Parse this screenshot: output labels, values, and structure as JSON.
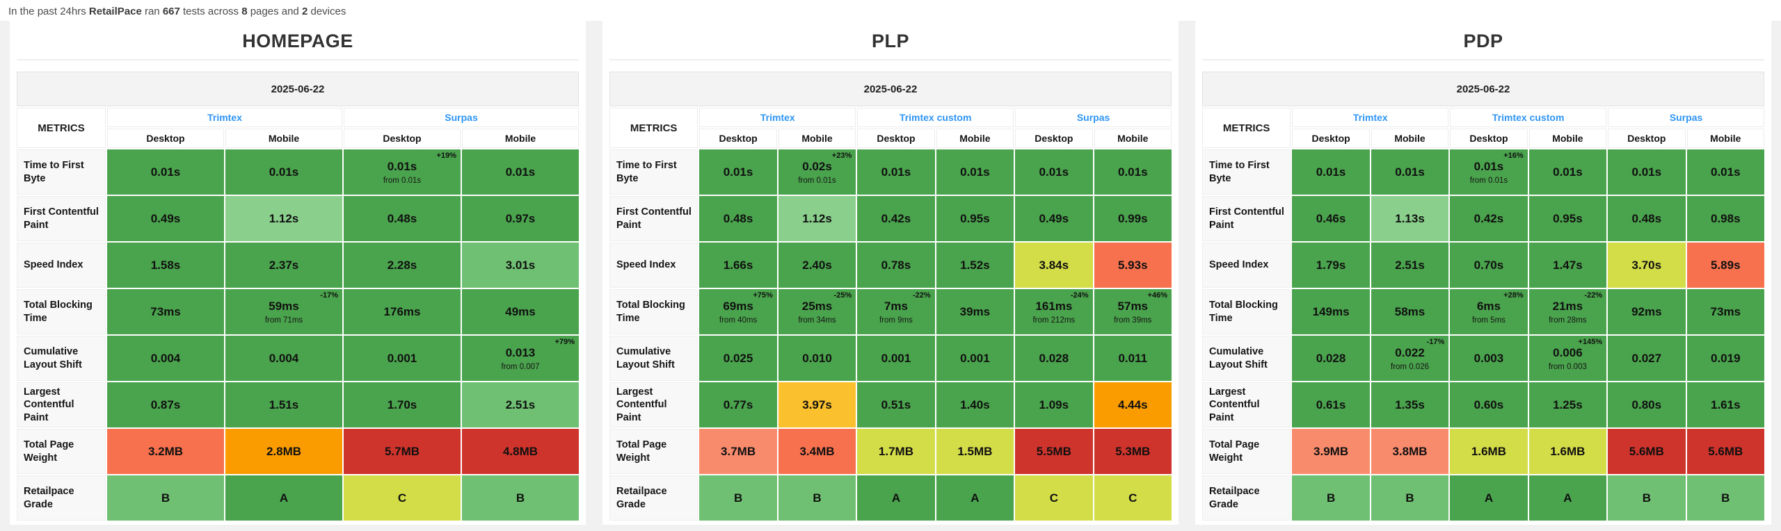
{
  "summary": {
    "segments": [
      {
        "text": "In the past 24hrs ",
        "bold": false
      },
      {
        "text": "RetailPace",
        "bold": true
      },
      {
        "text": " ran ",
        "bold": false
      },
      {
        "text": "667",
        "bold": true
      },
      {
        "text": " tests across ",
        "bold": false
      },
      {
        "text": "8",
        "bold": true
      },
      {
        "text": " pages and ",
        "bold": false
      },
      {
        "text": "2",
        "bold": true
      },
      {
        "text": " devices",
        "bold": false
      }
    ]
  },
  "colors": {
    "green": "#4aa34d",
    "green_light": "#6fc072",
    "green_lighter": "#8bcf8d",
    "yellow_green": "#d3dd48",
    "amber": "#fbc02d",
    "orange": "#fa9c00",
    "tomato": "#f7714e",
    "salmon": "#f98b6d",
    "red": "#ce342c",
    "link_blue": "#2e95f3"
  },
  "chart_data": [
    {
      "type": "table",
      "title": "HOMEPAGE",
      "date": "2025-06-22",
      "corner_label": "METRICS",
      "column_groups": [
        {
          "label": "Trimtex",
          "sub": [
            "Desktop",
            "Mobile"
          ]
        },
        {
          "label": "Surpas",
          "sub": [
            "Desktop",
            "Mobile"
          ]
        }
      ],
      "rows": [
        {
          "metric": "Time to First Byte",
          "cells": [
            {
              "v": "0.01s",
              "c": "green"
            },
            {
              "v": "0.01s",
              "c": "green"
            },
            {
              "v": "0.01s",
              "c": "green",
              "p": "+19%",
              "f": "from 0.01s"
            },
            {
              "v": "0.01s",
              "c": "green"
            }
          ]
        },
        {
          "metric": "First Contentful Paint",
          "cells": [
            {
              "v": "0.49s",
              "c": "green"
            },
            {
              "v": "1.12s",
              "c": "green_lighter"
            },
            {
              "v": "0.48s",
              "c": "green"
            },
            {
              "v": "0.97s",
              "c": "green"
            }
          ]
        },
        {
          "metric": "Speed Index",
          "cells": [
            {
              "v": "1.58s",
              "c": "green"
            },
            {
              "v": "2.37s",
              "c": "green"
            },
            {
              "v": "2.28s",
              "c": "green"
            },
            {
              "v": "3.01s",
              "c": "green_light"
            }
          ]
        },
        {
          "metric": "Total Blocking Time",
          "cells": [
            {
              "v": "73ms",
              "c": "green"
            },
            {
              "v": "59ms",
              "c": "green",
              "p": "-17%",
              "f": "from 71ms"
            },
            {
              "v": "176ms",
              "c": "green"
            },
            {
              "v": "49ms",
              "c": "green"
            }
          ]
        },
        {
          "metric": "Cumulative Layout Shift",
          "cells": [
            {
              "v": "0.004",
              "c": "green"
            },
            {
              "v": "0.004",
              "c": "green"
            },
            {
              "v": "0.001",
              "c": "green"
            },
            {
              "v": "0.013",
              "c": "green",
              "p": "+79%",
              "f": "from 0.007"
            }
          ]
        },
        {
          "metric": "Largest Contentful Paint",
          "cells": [
            {
              "v": "0.87s",
              "c": "green"
            },
            {
              "v": "1.51s",
              "c": "green"
            },
            {
              "v": "1.70s",
              "c": "green"
            },
            {
              "v": "2.51s",
              "c": "green_light"
            }
          ]
        },
        {
          "metric": "Total Page Weight",
          "cells": [
            {
              "v": "3.2MB",
              "c": "tomato"
            },
            {
              "v": "2.8MB",
              "c": "orange"
            },
            {
              "v": "5.7MB",
              "c": "red"
            },
            {
              "v": "4.8MB",
              "c": "red"
            }
          ]
        },
        {
          "metric": "Retailpace Grade",
          "cells": [
            {
              "v": "B",
              "c": "green_light"
            },
            {
              "v": "A",
              "c": "green"
            },
            {
              "v": "C",
              "c": "yellow_green"
            },
            {
              "v": "B",
              "c": "green_light"
            }
          ]
        }
      ]
    },
    {
      "type": "table",
      "title": "PLP",
      "date": "2025-06-22",
      "corner_label": "METRICS",
      "column_groups": [
        {
          "label": "Trimtex",
          "sub": [
            "Desktop",
            "Mobile"
          ]
        },
        {
          "label": "Trimtex custom",
          "sub": [
            "Desktop",
            "Mobile"
          ]
        },
        {
          "label": "Surpas",
          "sub": [
            "Desktop",
            "Mobile"
          ]
        }
      ],
      "rows": [
        {
          "metric": "Time to First Byte",
          "cells": [
            {
              "v": "0.01s",
              "c": "green"
            },
            {
              "v": "0.02s",
              "c": "green",
              "p": "+23%",
              "f": "from 0.01s"
            },
            {
              "v": "0.01s",
              "c": "green"
            },
            {
              "v": "0.01s",
              "c": "green"
            },
            {
              "v": "0.01s",
              "c": "green"
            },
            {
              "v": "0.01s",
              "c": "green"
            }
          ]
        },
        {
          "metric": "First Contentful Paint",
          "cells": [
            {
              "v": "0.48s",
              "c": "green"
            },
            {
              "v": "1.12s",
              "c": "green_lighter"
            },
            {
              "v": "0.42s",
              "c": "green"
            },
            {
              "v": "0.95s",
              "c": "green"
            },
            {
              "v": "0.49s",
              "c": "green"
            },
            {
              "v": "0.99s",
              "c": "green"
            }
          ]
        },
        {
          "metric": "Speed Index",
          "cells": [
            {
              "v": "1.66s",
              "c": "green"
            },
            {
              "v": "2.40s",
              "c": "green"
            },
            {
              "v": "0.78s",
              "c": "green"
            },
            {
              "v": "1.52s",
              "c": "green"
            },
            {
              "v": "3.84s",
              "c": "yellow_green"
            },
            {
              "v": "5.93s",
              "c": "tomato"
            }
          ]
        },
        {
          "metric": "Total Blocking Time",
          "cells": [
            {
              "v": "69ms",
              "c": "green",
              "p": "+75%",
              "f": "from 40ms"
            },
            {
              "v": "25ms",
              "c": "green",
              "p": "-25%",
              "f": "from 34ms"
            },
            {
              "v": "7ms",
              "c": "green",
              "p": "-22%",
              "f": "from 9ms"
            },
            {
              "v": "39ms",
              "c": "green"
            },
            {
              "v": "161ms",
              "c": "green",
              "p": "-24%",
              "f": "from 212ms"
            },
            {
              "v": "57ms",
              "c": "green",
              "p": "+46%",
              "f": "from 39ms"
            }
          ]
        },
        {
          "metric": "Cumulative Layout Shift",
          "cells": [
            {
              "v": "0.025",
              "c": "green"
            },
            {
              "v": "0.010",
              "c": "green"
            },
            {
              "v": "0.001",
              "c": "green"
            },
            {
              "v": "0.001",
              "c": "green"
            },
            {
              "v": "0.028",
              "c": "green"
            },
            {
              "v": "0.011",
              "c": "green"
            }
          ]
        },
        {
          "metric": "Largest Contentful Paint",
          "cells": [
            {
              "v": "0.77s",
              "c": "green"
            },
            {
              "v": "3.97s",
              "c": "amber"
            },
            {
              "v": "0.51s",
              "c": "green"
            },
            {
              "v": "1.40s",
              "c": "green"
            },
            {
              "v": "1.09s",
              "c": "green"
            },
            {
              "v": "4.44s",
              "c": "orange"
            }
          ]
        },
        {
          "metric": "Total Page Weight",
          "cells": [
            {
              "v": "3.7MB",
              "c": "salmon"
            },
            {
              "v": "3.4MB",
              "c": "tomato"
            },
            {
              "v": "1.7MB",
              "c": "yellow_green"
            },
            {
              "v": "1.5MB",
              "c": "yellow_green"
            },
            {
              "v": "5.5MB",
              "c": "red"
            },
            {
              "v": "5.3MB",
              "c": "red"
            }
          ]
        },
        {
          "metric": "Retailpace Grade",
          "cells": [
            {
              "v": "B",
              "c": "green_light"
            },
            {
              "v": "B",
              "c": "green_light"
            },
            {
              "v": "A",
              "c": "green"
            },
            {
              "v": "A",
              "c": "green"
            },
            {
              "v": "C",
              "c": "yellow_green"
            },
            {
              "v": "C",
              "c": "yellow_green"
            }
          ]
        }
      ]
    },
    {
      "type": "table",
      "title": "PDP",
      "date": "2025-06-22",
      "corner_label": "METRICS",
      "column_groups": [
        {
          "label": "Trimtex",
          "sub": [
            "Desktop",
            "Mobile"
          ]
        },
        {
          "label": "Trimtex custom",
          "sub": [
            "Desktop",
            "Mobile"
          ]
        },
        {
          "label": "Surpas",
          "sub": [
            "Desktop",
            "Mobile"
          ]
        }
      ],
      "rows": [
        {
          "metric": "Time to First Byte",
          "cells": [
            {
              "v": "0.01s",
              "c": "green"
            },
            {
              "v": "0.01s",
              "c": "green"
            },
            {
              "v": "0.01s",
              "c": "green",
              "p": "+16%",
              "f": "from 0.01s"
            },
            {
              "v": "0.01s",
              "c": "green"
            },
            {
              "v": "0.01s",
              "c": "green"
            },
            {
              "v": "0.01s",
              "c": "green"
            }
          ]
        },
        {
          "metric": "First Contentful Paint",
          "cells": [
            {
              "v": "0.46s",
              "c": "green"
            },
            {
              "v": "1.13s",
              "c": "green_lighter"
            },
            {
              "v": "0.42s",
              "c": "green"
            },
            {
              "v": "0.95s",
              "c": "green"
            },
            {
              "v": "0.48s",
              "c": "green"
            },
            {
              "v": "0.98s",
              "c": "green"
            }
          ]
        },
        {
          "metric": "Speed Index",
          "cells": [
            {
              "v": "1.79s",
              "c": "green"
            },
            {
              "v": "2.51s",
              "c": "green"
            },
            {
              "v": "0.70s",
              "c": "green"
            },
            {
              "v": "1.47s",
              "c": "green"
            },
            {
              "v": "3.70s",
              "c": "yellow_green"
            },
            {
              "v": "5.89s",
              "c": "tomato"
            }
          ]
        },
        {
          "metric": "Total Blocking Time",
          "cells": [
            {
              "v": "149ms",
              "c": "green"
            },
            {
              "v": "58ms",
              "c": "green"
            },
            {
              "v": "6ms",
              "c": "green",
              "p": "+28%",
              "f": "from 5ms"
            },
            {
              "v": "21ms",
              "c": "green",
              "p": "-22%",
              "f": "from 28ms"
            },
            {
              "v": "92ms",
              "c": "green"
            },
            {
              "v": "73ms",
              "c": "green"
            }
          ]
        },
        {
          "metric": "Cumulative Layout Shift",
          "cells": [
            {
              "v": "0.028",
              "c": "green"
            },
            {
              "v": "0.022",
              "c": "green",
              "p": "-17%",
              "f": "from 0.026"
            },
            {
              "v": "0.003",
              "c": "green"
            },
            {
              "v": "0.006",
              "c": "green",
              "p": "+145%",
              "f": "from 0.003"
            },
            {
              "v": "0.027",
              "c": "green"
            },
            {
              "v": "0.019",
              "c": "green"
            }
          ]
        },
        {
          "metric": "Largest Contentful Paint",
          "cells": [
            {
              "v": "0.61s",
              "c": "green"
            },
            {
              "v": "1.35s",
              "c": "green"
            },
            {
              "v": "0.60s",
              "c": "green"
            },
            {
              "v": "1.25s",
              "c": "green"
            },
            {
              "v": "0.80s",
              "c": "green"
            },
            {
              "v": "1.61s",
              "c": "green"
            }
          ]
        },
        {
          "metric": "Total Page Weight",
          "cells": [
            {
              "v": "3.9MB",
              "c": "salmon"
            },
            {
              "v": "3.8MB",
              "c": "salmon"
            },
            {
              "v": "1.6MB",
              "c": "yellow_green"
            },
            {
              "v": "1.6MB",
              "c": "yellow_green"
            },
            {
              "v": "5.6MB",
              "c": "red"
            },
            {
              "v": "5.6MB",
              "c": "red"
            }
          ]
        },
        {
          "metric": "Retailpace Grade",
          "cells": [
            {
              "v": "B",
              "c": "green_light"
            },
            {
              "v": "B",
              "c": "green_light"
            },
            {
              "v": "A",
              "c": "green"
            },
            {
              "v": "A",
              "c": "green"
            },
            {
              "v": "B",
              "c": "green_light"
            },
            {
              "v": "B",
              "c": "green_light"
            }
          ]
        }
      ]
    }
  ]
}
